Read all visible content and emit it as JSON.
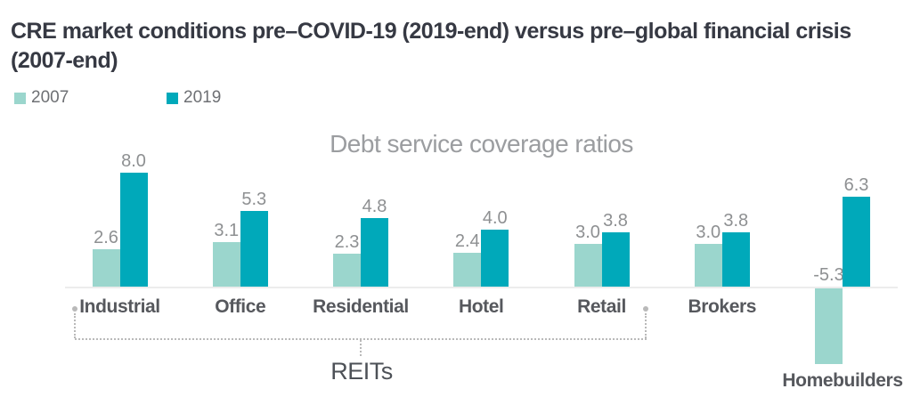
{
  "page": {
    "title": "CRE market conditions pre–COVID-19 (2019-end) versus pre–global financial crisis (2007-end)"
  },
  "legend": {
    "items": [
      {
        "label": "2007",
        "color": "#9bd6cd"
      },
      {
        "label": "2019",
        "color": "#00a9ba"
      }
    ]
  },
  "chart_data": {
    "type": "bar",
    "title": "Debt service coverage ratios",
    "categories": [
      "Industrial",
      "Office",
      "Residential",
      "Hotel",
      "Retail",
      "Brokers",
      "Homebuilders"
    ],
    "series": [
      {
        "name": "2007",
        "color": "#9bd6cd",
        "values": [
          2.6,
          3.1,
          2.3,
          2.4,
          3.0,
          3.0,
          -5.3
        ]
      },
      {
        "name": "2019",
        "color": "#00a9ba",
        "values": [
          8.0,
          5.3,
          4.8,
          4.0,
          3.8,
          3.8,
          6.3
        ]
      }
    ],
    "ylim": [
      -6,
      9
    ],
    "grid": false,
    "legend_position": "top-left",
    "annotation": {
      "label": "REITs",
      "span_categories": [
        "Industrial",
        "Retail"
      ]
    }
  },
  "colors": {
    "background": "#ffffff",
    "title_text": "#363943",
    "legend_text": "#6e7074",
    "chart_title_text": "#9b9da0",
    "value_text": "#8e9092",
    "category_text": "#56585d",
    "axis_line": "#ececec",
    "bracket": "#b9b9b9",
    "annotation_text": "#4d5157"
  }
}
